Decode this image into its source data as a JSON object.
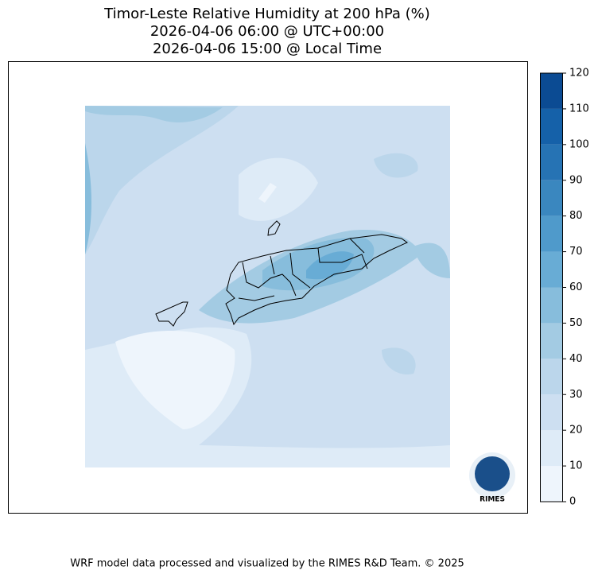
{
  "title": [
    "Timor-Leste Relative Humidity at 200 hPa (%)",
    "2026-04-06 06:00 @ UTC+00:00",
    "2026-04-06 15:00 @ Local Time"
  ],
  "colorbar": {
    "lim": [
      0,
      120
    ],
    "ticks": [
      0,
      10,
      20,
      30,
      40,
      50,
      60,
      70,
      80,
      90,
      100,
      110,
      120
    ],
    "colors": [
      "#eef5fc",
      "#deebf7",
      "#cddff1",
      "#bbd6eb",
      "#a3cbe3",
      "#87bddc",
      "#68acd5",
      "#4f9acb",
      "#3a87bf",
      "#2673b4",
      "#1561a9",
      "#0b4b93"
    ]
  },
  "logo": "RIMES",
  "footer": "WRF model data processed and visualized by the RIMES R&D Team. © 2025"
}
